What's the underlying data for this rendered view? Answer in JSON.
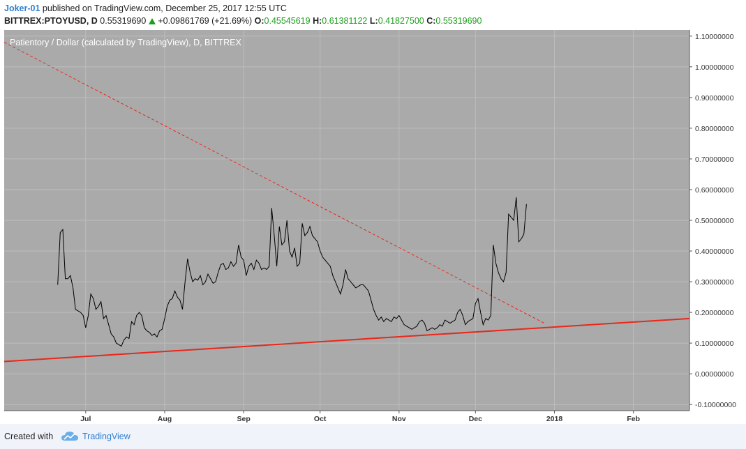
{
  "header": {
    "user": "Joker-01",
    "published": "published on TradingView.com, December 25, 2017 12:55 UTC"
  },
  "ohlc": {
    "symbol": "BITTREX:PTOYUSD, D",
    "last": "0.55319690",
    "change": "+0.09861769 (+21.69%)",
    "open_label": "O:",
    "open": "0.45545619",
    "high_label": "H:",
    "high": "0.61381122",
    "low_label": "L:",
    "low": "0.41827500",
    "close_label": "C:",
    "close": "0.55319690",
    "up_color": "#1b9e1b"
  },
  "footer": {
    "created_with": "Created with",
    "brand": "TradingView",
    "brand_icon": "tradingview-cloud-icon"
  },
  "chart_data": {
    "type": "line",
    "title": "Patientory / Dollar (calculated by TradingView), D, BITTREX",
    "background": "#aaaaaa",
    "line_color": "#000000",
    "grid": true,
    "ylim": [
      -0.12,
      1.12
    ],
    "y_ticks": [
      -0.1,
      0.0,
      0.1,
      0.2,
      0.3,
      0.4,
      0.5,
      0.6,
      0.7,
      0.8,
      0.9,
      1.0,
      1.1
    ],
    "y_tick_labels": [
      "-0.10000000",
      "0.00000000",
      "0.10000000",
      "0.20000000",
      "0.30000000",
      "0.40000000",
      "0.50000000",
      "0.60000000",
      "0.70000000",
      "0.80000000",
      "0.90000000",
      "1.00000000",
      "1.10000000"
    ],
    "x_range": [
      "2017-05-30",
      "2018-02-23"
    ],
    "x_ticks": [
      {
        "date": "2017-07-01",
        "label": "Jul"
      },
      {
        "date": "2017-08-01",
        "label": "Aug"
      },
      {
        "date": "2017-09-01",
        "label": "Sep"
      },
      {
        "date": "2017-10-01",
        "label": "Oct"
      },
      {
        "date": "2017-11-01",
        "label": "Nov"
      },
      {
        "date": "2017-12-01",
        "label": "Dec"
      },
      {
        "date": "2018-01-01",
        "label": "2018"
      },
      {
        "date": "2018-02-01",
        "label": "Feb"
      }
    ],
    "series": [
      {
        "points": [
          [
            "2017-06-20",
            0.29
          ],
          [
            "2017-06-21",
            0.46
          ],
          [
            "2017-06-22",
            0.47
          ],
          [
            "2017-06-23",
            0.31
          ],
          [
            "2017-06-24",
            0.31
          ],
          [
            "2017-06-25",
            0.32
          ],
          [
            "2017-06-26",
            0.28
          ],
          [
            "2017-06-27",
            0.21
          ],
          [
            "2017-06-28",
            0.205
          ],
          [
            "2017-06-29",
            0.2
          ],
          [
            "2017-06-30",
            0.19
          ],
          [
            "2017-07-01",
            0.15
          ],
          [
            "2017-07-02",
            0.19
          ],
          [
            "2017-07-03",
            0.26
          ],
          [
            "2017-07-04",
            0.245
          ],
          [
            "2017-07-05",
            0.21
          ],
          [
            "2017-07-06",
            0.22
          ],
          [
            "2017-07-07",
            0.235
          ],
          [
            "2017-07-08",
            0.18
          ],
          [
            "2017-07-09",
            0.19
          ],
          [
            "2017-07-10",
            0.16
          ],
          [
            "2017-07-11",
            0.13
          ],
          [
            "2017-07-12",
            0.12
          ],
          [
            "2017-07-13",
            0.1
          ],
          [
            "2017-07-14",
            0.095
          ],
          [
            "2017-07-15",
            0.09
          ],
          [
            "2017-07-16",
            0.11
          ],
          [
            "2017-07-17",
            0.12
          ],
          [
            "2017-07-18",
            0.115
          ],
          [
            "2017-07-19",
            0.17
          ],
          [
            "2017-07-20",
            0.16
          ],
          [
            "2017-07-21",
            0.19
          ],
          [
            "2017-07-22",
            0.2
          ],
          [
            "2017-07-23",
            0.19
          ],
          [
            "2017-07-24",
            0.15
          ],
          [
            "2017-07-25",
            0.14
          ],
          [
            "2017-07-26",
            0.135
          ],
          [
            "2017-07-27",
            0.125
          ],
          [
            "2017-07-28",
            0.13
          ],
          [
            "2017-07-29",
            0.12
          ],
          [
            "2017-07-30",
            0.14
          ],
          [
            "2017-07-31",
            0.145
          ],
          [
            "2017-08-01",
            0.18
          ],
          [
            "2017-08-02",
            0.22
          ],
          [
            "2017-08-03",
            0.24
          ],
          [
            "2017-08-04",
            0.245
          ],
          [
            "2017-08-05",
            0.27
          ],
          [
            "2017-08-06",
            0.25
          ],
          [
            "2017-08-07",
            0.24
          ],
          [
            "2017-08-08",
            0.21
          ],
          [
            "2017-08-09",
            0.3
          ],
          [
            "2017-08-10",
            0.375
          ],
          [
            "2017-08-11",
            0.33
          ],
          [
            "2017-08-12",
            0.3
          ],
          [
            "2017-08-13",
            0.31
          ],
          [
            "2017-08-14",
            0.305
          ],
          [
            "2017-08-15",
            0.32
          ],
          [
            "2017-08-16",
            0.29
          ],
          [
            "2017-08-17",
            0.3
          ],
          [
            "2017-08-18",
            0.325
          ],
          [
            "2017-08-19",
            0.31
          ],
          [
            "2017-08-20",
            0.295
          ],
          [
            "2017-08-21",
            0.3
          ],
          [
            "2017-08-22",
            0.33
          ],
          [
            "2017-08-23",
            0.355
          ],
          [
            "2017-08-24",
            0.36
          ],
          [
            "2017-08-25",
            0.34
          ],
          [
            "2017-08-26",
            0.345
          ],
          [
            "2017-08-27",
            0.365
          ],
          [
            "2017-08-28",
            0.35
          ],
          [
            "2017-08-29",
            0.36
          ],
          [
            "2017-08-30",
            0.42
          ],
          [
            "2017-08-31",
            0.38
          ],
          [
            "2017-09-01",
            0.37
          ],
          [
            "2017-09-02",
            0.32
          ],
          [
            "2017-09-03",
            0.35
          ],
          [
            "2017-09-04",
            0.36
          ],
          [
            "2017-09-05",
            0.34
          ],
          [
            "2017-09-06",
            0.37
          ],
          [
            "2017-09-07",
            0.36
          ],
          [
            "2017-09-08",
            0.34
          ],
          [
            "2017-09-09",
            0.345
          ],
          [
            "2017-09-10",
            0.34
          ],
          [
            "2017-09-11",
            0.35
          ],
          [
            "2017-09-12",
            0.54
          ],
          [
            "2017-09-13",
            0.45
          ],
          [
            "2017-09-14",
            0.35
          ],
          [
            "2017-09-15",
            0.48
          ],
          [
            "2017-09-16",
            0.42
          ],
          [
            "2017-09-17",
            0.43
          ],
          [
            "2017-09-18",
            0.5
          ],
          [
            "2017-09-19",
            0.4
          ],
          [
            "2017-09-20",
            0.38
          ],
          [
            "2017-09-21",
            0.41
          ],
          [
            "2017-09-22",
            0.35
          ],
          [
            "2017-09-23",
            0.36
          ],
          [
            "2017-09-24",
            0.49
          ],
          [
            "2017-09-25",
            0.45
          ],
          [
            "2017-09-26",
            0.46
          ],
          [
            "2017-09-27",
            0.48
          ],
          [
            "2017-09-28",
            0.45
          ],
          [
            "2017-09-29",
            0.44
          ],
          [
            "2017-09-30",
            0.43
          ],
          [
            "2017-10-01",
            0.4
          ],
          [
            "2017-10-02",
            0.38
          ],
          [
            "2017-10-03",
            0.37
          ],
          [
            "2017-10-04",
            0.36
          ],
          [
            "2017-10-05",
            0.35
          ],
          [
            "2017-10-06",
            0.32
          ],
          [
            "2017-10-07",
            0.3
          ],
          [
            "2017-10-08",
            0.28
          ],
          [
            "2017-10-09",
            0.26
          ],
          [
            "2017-10-10",
            0.29
          ],
          [
            "2017-10-11",
            0.34
          ],
          [
            "2017-10-12",
            0.31
          ],
          [
            "2017-10-13",
            0.3
          ],
          [
            "2017-10-14",
            0.29
          ],
          [
            "2017-10-15",
            0.28
          ],
          [
            "2017-10-16",
            0.285
          ],
          [
            "2017-10-17",
            0.29
          ],
          [
            "2017-10-18",
            0.29
          ],
          [
            "2017-10-19",
            0.28
          ],
          [
            "2017-10-20",
            0.27
          ],
          [
            "2017-10-21",
            0.24
          ],
          [
            "2017-10-22",
            0.21
          ],
          [
            "2017-10-23",
            0.19
          ],
          [
            "2017-10-24",
            0.175
          ],
          [
            "2017-10-25",
            0.185
          ],
          [
            "2017-10-26",
            0.17
          ],
          [
            "2017-10-27",
            0.18
          ],
          [
            "2017-10-28",
            0.175
          ],
          [
            "2017-10-29",
            0.17
          ],
          [
            "2017-10-30",
            0.185
          ],
          [
            "2017-10-31",
            0.18
          ],
          [
            "2017-11-01",
            0.19
          ],
          [
            "2017-11-02",
            0.175
          ],
          [
            "2017-11-03",
            0.16
          ],
          [
            "2017-11-04",
            0.155
          ],
          [
            "2017-11-05",
            0.15
          ],
          [
            "2017-11-06",
            0.145
          ],
          [
            "2017-11-07",
            0.15
          ],
          [
            "2017-11-08",
            0.155
          ],
          [
            "2017-11-09",
            0.17
          ],
          [
            "2017-11-10",
            0.175
          ],
          [
            "2017-11-11",
            0.165
          ],
          [
            "2017-11-12",
            0.14
          ],
          [
            "2017-11-13",
            0.145
          ],
          [
            "2017-11-14",
            0.15
          ],
          [
            "2017-11-15",
            0.145
          ],
          [
            "2017-11-16",
            0.15
          ],
          [
            "2017-11-17",
            0.16
          ],
          [
            "2017-11-18",
            0.155
          ],
          [
            "2017-11-19",
            0.175
          ],
          [
            "2017-11-20",
            0.17
          ],
          [
            "2017-11-21",
            0.165
          ],
          [
            "2017-11-22",
            0.17
          ],
          [
            "2017-11-23",
            0.175
          ],
          [
            "2017-11-24",
            0.2
          ],
          [
            "2017-11-25",
            0.21
          ],
          [
            "2017-11-26",
            0.19
          ],
          [
            "2017-11-27",
            0.16
          ],
          [
            "2017-11-28",
            0.17
          ],
          [
            "2017-11-29",
            0.175
          ],
          [
            "2017-11-30",
            0.18
          ],
          [
            "2017-12-01",
            0.23
          ],
          [
            "2017-12-02",
            0.245
          ],
          [
            "2017-12-03",
            0.2
          ],
          [
            "2017-12-04",
            0.16
          ],
          [
            "2017-12-05",
            0.18
          ],
          [
            "2017-12-06",
            0.175
          ],
          [
            "2017-12-07",
            0.19
          ],
          [
            "2017-12-08",
            0.42
          ],
          [
            "2017-12-09",
            0.36
          ],
          [
            "2017-12-10",
            0.33
          ],
          [
            "2017-12-11",
            0.31
          ],
          [
            "2017-12-12",
            0.3
          ],
          [
            "2017-12-13",
            0.33
          ],
          [
            "2017-12-14",
            0.52
          ],
          [
            "2017-12-15",
            0.51
          ],
          [
            "2017-12-16",
            0.5
          ],
          [
            "2017-12-17",
            0.575
          ],
          [
            "2017-12-18",
            0.43
          ],
          [
            "2017-12-19",
            0.44
          ],
          [
            "2017-12-20",
            0.455
          ],
          [
            "2017-12-21",
            0.553
          ]
        ]
      }
    ],
    "trendlines": [
      {
        "style": "dashed",
        "color": "#e8281c",
        "from": [
          "2017-05-30",
          1.08
        ],
        "to": [
          "2017-12-28",
          0.165
        ]
      },
      {
        "style": "solid",
        "color": "#e8281c",
        "from": [
          "2017-05-30",
          0.04
        ],
        "to": [
          "2018-02-23",
          0.18
        ]
      }
    ]
  }
}
